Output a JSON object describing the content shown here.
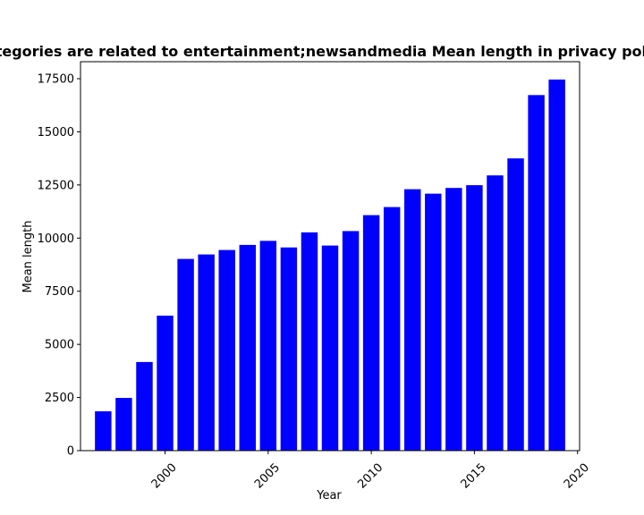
{
  "chart_data": {
    "type": "bar",
    "title": "Categories are related to entertainment;newsandmedia Mean length in privacy policies",
    "xlabel": "Year",
    "ylabel": "Mean length",
    "bar_color": "#0000ff",
    "x": [
      1997,
      1998,
      1999,
      2000,
      2001,
      2002,
      2003,
      2004,
      2005,
      2006,
      2007,
      2008,
      2009,
      2010,
      2011,
      2012,
      2013,
      2014,
      2015,
      2016,
      2017,
      2018,
      2019
    ],
    "values": [
      1850,
      2480,
      4170,
      6350,
      9020,
      9230,
      9440,
      9680,
      9870,
      9560,
      10270,
      9650,
      10330,
      11080,
      11460,
      12300,
      12090,
      12360,
      12490,
      12950,
      13750,
      16730,
      17460
    ],
    "xlim": [
      1995.9,
      2020.1
    ],
    "ylim": [
      0,
      18300
    ],
    "xticks": [
      2000,
      2005,
      2010,
      2015,
      2020
    ],
    "yticks": [
      0,
      2500,
      5000,
      7500,
      10000,
      12500,
      15000,
      17500
    ],
    "grid": false,
    "legend": "none"
  }
}
